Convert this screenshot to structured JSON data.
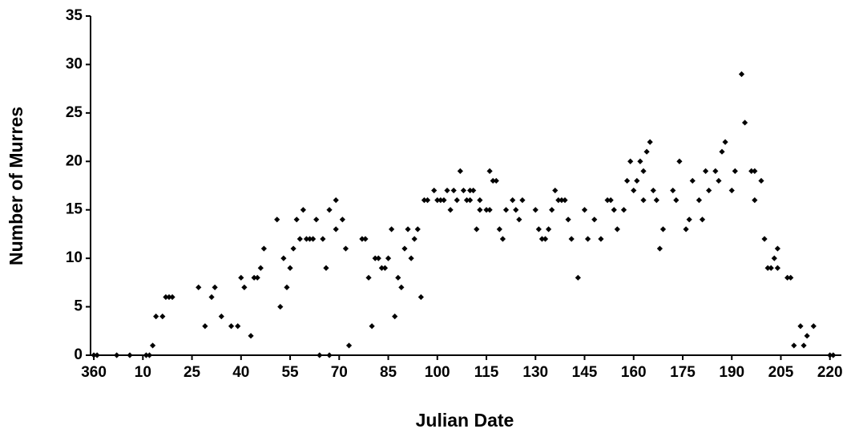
{
  "chart_data": {
    "type": "scatter",
    "x_label": "Julian Date",
    "y_label": "Number of Murres",
    "color": "#000000",
    "xlim": [
      359,
      588.5
    ],
    "ylim": [
      0,
      35
    ],
    "xticks": [
      360,
      {
        "value": 375,
        "label": "10"
      },
      {
        "value": 390,
        "label": "25"
      },
      {
        "value": 405,
        "label": "40"
      },
      {
        "value": 420,
        "label": "55"
      },
      {
        "value": 435,
        "label": "70"
      },
      {
        "value": 450,
        "label": "85"
      },
      {
        "value": 465,
        "label": "100"
      },
      {
        "value": 480,
        "label": "115"
      },
      {
        "value": 495,
        "label": "130"
      },
      {
        "value": 510,
        "label": "145"
      },
      {
        "value": 525,
        "label": "160"
      },
      {
        "value": 540,
        "label": "175"
      },
      {
        "value": 555,
        "label": "190"
      },
      {
        "value": 570,
        "label": "205"
      },
      {
        "value": 585,
        "label": "220"
      }
    ],
    "yticks": [
      0,
      5,
      10,
      15,
      20,
      25,
      30,
      35
    ],
    "x": [
      360,
      361,
      367,
      371,
      376,
      377,
      378,
      379,
      381,
      382,
      383,
      384,
      392,
      394,
      396,
      397,
      399,
      402,
      404,
      405,
      406,
      408,
      409,
      410,
      411,
      412,
      416,
      417,
      418,
      419,
      420,
      421,
      422,
      423,
      424,
      425,
      426,
      427,
      428,
      429,
      430,
      431,
      432,
      432,
      434,
      434,
      436,
      437,
      438,
      442,
      443,
      444,
      445,
      446,
      447,
      448,
      449,
      450,
      451,
      452,
      453,
      454,
      455,
      456,
      457,
      458,
      459,
      460,
      461,
      462,
      464,
      465,
      466,
      467,
      468,
      469,
      470,
      471,
      472,
      473,
      474,
      475,
      475,
      476,
      477,
      478,
      478,
      480,
      481,
      481,
      482,
      483,
      484,
      485,
      486,
      488,
      489,
      490,
      491,
      495,
      496,
      497,
      498,
      499,
      500,
      501,
      502,
      503,
      504,
      505,
      506,
      508,
      510,
      511,
      513,
      515,
      517,
      518,
      519,
      520,
      522,
      523,
      524,
      525,
      526,
      527,
      528,
      528,
      529,
      530,
      531,
      532,
      533,
      534,
      537,
      538,
      539,
      541,
      542,
      543,
      545,
      546,
      547,
      548,
      550,
      551,
      552,
      553,
      555,
      556,
      558,
      559,
      561,
      562,
      562,
      564,
      565,
      566,
      567,
      568,
      569,
      569,
      572,
      573,
      574,
      576,
      577,
      578,
      580,
      585,
      586
    ],
    "values": [
      0,
      0,
      0,
      0,
      0,
      0,
      1,
      4,
      4,
      6,
      6,
      6,
      7,
      3,
      6,
      7,
      4,
      3,
      3,
      8,
      7,
      2,
      8,
      8,
      9,
      11,
      14,
      5,
      10,
      7,
      9,
      11,
      14,
      12,
      15,
      12,
      12,
      12,
      14,
      0,
      12,
      9,
      15,
      0,
      16,
      13,
      14,
      11,
      1,
      12,
      12,
      8,
      3,
      10,
      10,
      9,
      9,
      10,
      13,
      4,
      8,
      7,
      11,
      13,
      10,
      12,
      13,
      6,
      16,
      16,
      17,
      16,
      16,
      16,
      17,
      15,
      17,
      16,
      19,
      17,
      16,
      17,
      16,
      17,
      13,
      16,
      15,
      15,
      19,
      15,
      18,
      18,
      13,
      12,
      15,
      16,
      15,
      14,
      16,
      15,
      13,
      12,
      12,
      13,
      15,
      17,
      16,
      16,
      16,
      14,
      12,
      8,
      15,
      12,
      14,
      12,
      16,
      16,
      15,
      13,
      15,
      18,
      20,
      17,
      18,
      20,
      16,
      19,
      21,
      22,
      17,
      16,
      11,
      13,
      17,
      16,
      20,
      13,
      14,
      18,
      16,
      14,
      19,
      17,
      19,
      18,
      21,
      22,
      17,
      19,
      29,
      24,
      19,
      16,
      19,
      18,
      12,
      9,
      9,
      10,
      11,
      9,
      8,
      8,
      1,
      3,
      1,
      2,
      3,
      0,
      0
    ]
  }
}
